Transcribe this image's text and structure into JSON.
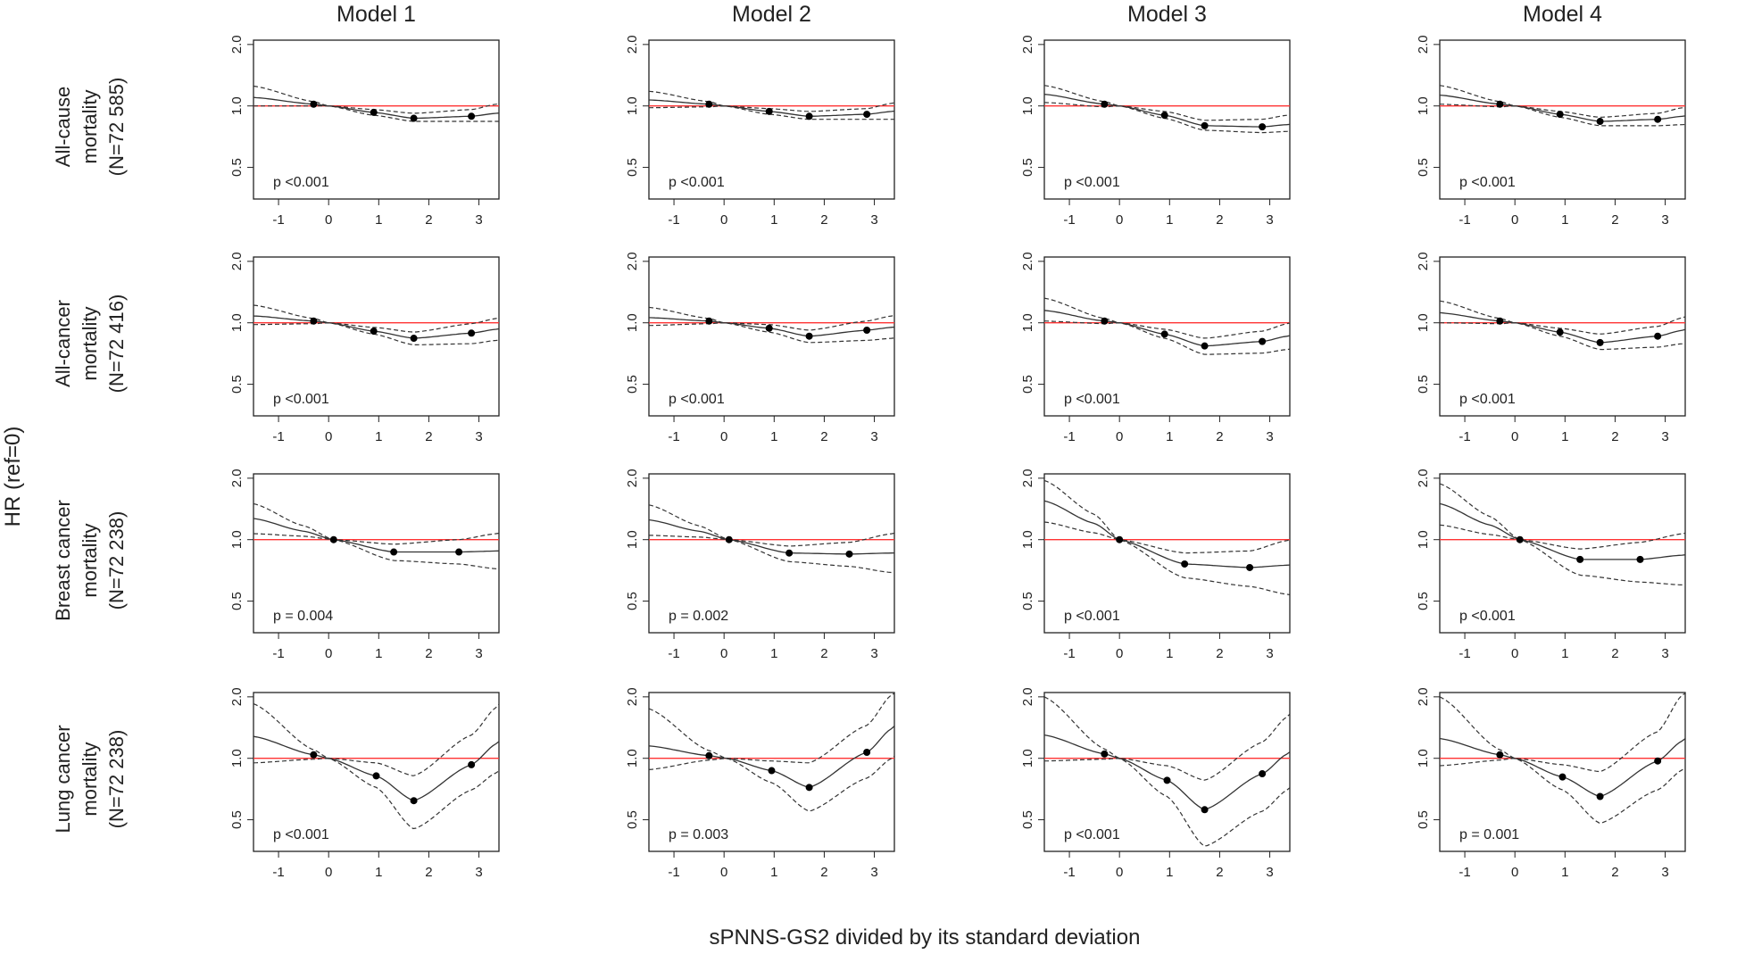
{
  "chart_data": {
    "type": "line",
    "layout": "4x4 grid of restricted cubic spline plots",
    "model_titles": [
      "Model 1",
      "Model 2",
      "Model 3",
      "Model 4"
    ],
    "row_labels": [
      [
        "All-cause",
        "mortality",
        "(N=72 585)"
      ],
      [
        "All-cancer",
        "mortality",
        "(N=72 416)"
      ],
      [
        "Breast cancer",
        "mortality",
        "(N=72 238)"
      ],
      [
        "Lung cancer",
        "mortality",
        "(N=72 238)"
      ]
    ],
    "ylabel": "HR (ref=0)",
    "xlabel": "sPNNS-GS2 divided by its standard deviation",
    "x_ticks": [
      "-1",
      "0",
      "1",
      "2",
      "3"
    ],
    "y_ticks": [
      "0.5",
      "1.0",
      "2.0"
    ],
    "xlim": [
      -1.5,
      3.4
    ],
    "ylim_log": [
      0.35,
      2.1
    ],
    "reference_line": {
      "y": 1.0,
      "color": "#ff0000"
    },
    "colors": {
      "estimate": "#333333",
      "ci": "#333333",
      "reference": "#ff3333",
      "frame": "#222222"
    },
    "panels": [
      [
        {
          "p": "p <0.001",
          "x": [
            -1.5,
            -0.3,
            0,
            0.9,
            1.7,
            2.85,
            3.35
          ],
          "hr": [
            1.1,
            1.02,
            1.0,
            0.93,
            0.87,
            0.89,
            0.92
          ],
          "lo": [
            1.0,
            1.0,
            1.0,
            0.9,
            0.84,
            0.84,
            0.84
          ],
          "hi": [
            1.25,
            1.05,
            1.0,
            0.96,
            0.92,
            0.96,
            1.02
          ],
          "pts_x": [
            -0.3,
            0.9,
            1.7,
            2.85
          ],
          "pts_y": [
            1.02,
            0.93,
            0.87,
            0.89
          ]
        },
        {
          "p": "p <0.001",
          "x": [
            -1.5,
            -0.3,
            0,
            0.9,
            1.7,
            2.85,
            3.35
          ],
          "hr": [
            1.07,
            1.02,
            1.0,
            0.94,
            0.89,
            0.91,
            0.94
          ],
          "lo": [
            0.98,
            0.99,
            1.0,
            0.91,
            0.86,
            0.86,
            0.86
          ],
          "hi": [
            1.18,
            1.05,
            1.0,
            0.97,
            0.94,
            0.97,
            1.03
          ],
          "pts_x": [
            -0.3,
            0.9,
            1.7,
            2.85
          ],
          "pts_y": [
            1.02,
            0.94,
            0.89,
            0.91
          ]
        },
        {
          "p": "p <0.001",
          "x": [
            -1.5,
            -0.3,
            0,
            0.9,
            1.7,
            2.85,
            3.35
          ],
          "hr": [
            1.14,
            1.02,
            1.0,
            0.9,
            0.8,
            0.79,
            0.81
          ],
          "lo": [
            1.04,
            0.99,
            1.0,
            0.87,
            0.76,
            0.74,
            0.75
          ],
          "hi": [
            1.26,
            1.05,
            1.0,
            0.94,
            0.85,
            0.86,
            0.9
          ],
          "pts_x": [
            -0.3,
            0.9,
            1.7,
            2.85
          ],
          "pts_y": [
            1.02,
            0.9,
            0.8,
            0.79
          ]
        },
        {
          "p": "p <0.001",
          "x": [
            -1.5,
            -0.3,
            0,
            0.9,
            1.7,
            2.85,
            3.35
          ],
          "hr": [
            1.13,
            1.02,
            1.0,
            0.91,
            0.84,
            0.86,
            0.89
          ],
          "lo": [
            1.02,
            0.99,
            1.0,
            0.88,
            0.8,
            0.8,
            0.81
          ],
          "hi": [
            1.26,
            1.05,
            1.0,
            0.94,
            0.88,
            0.92,
            0.98
          ],
          "pts_x": [
            -0.3,
            0.9,
            1.7,
            2.85
          ],
          "pts_y": [
            1.02,
            0.91,
            0.84,
            0.86
          ]
        }
      ],
      [
        {
          "p": "p <0.001",
          "x": [
            -1.5,
            -0.3,
            0,
            0.9,
            1.7,
            2.85,
            3.35
          ],
          "hr": [
            1.08,
            1.02,
            1.0,
            0.91,
            0.84,
            0.89,
            0.93
          ],
          "lo": [
            0.98,
            0.99,
            1.0,
            0.88,
            0.78,
            0.79,
            0.82
          ],
          "hi": [
            1.22,
            1.05,
            1.0,
            0.95,
            0.9,
            0.99,
            1.05
          ],
          "pts_x": [
            -0.3,
            0.9,
            1.7,
            2.85
          ],
          "pts_y": [
            1.02,
            0.91,
            0.84,
            0.89
          ]
        },
        {
          "p": "p <0.001",
          "x": [
            -1.5,
            -0.3,
            0,
            0.9,
            1.7,
            2.85,
            3.35
          ],
          "hr": [
            1.06,
            1.02,
            1.0,
            0.94,
            0.86,
            0.92,
            0.95
          ],
          "lo": [
            0.97,
            0.99,
            1.0,
            0.9,
            0.8,
            0.82,
            0.84
          ],
          "hi": [
            1.19,
            1.05,
            1.0,
            0.98,
            0.92,
            1.02,
            1.08
          ],
          "pts_x": [
            -0.3,
            0.9,
            1.7,
            2.85
          ],
          "pts_y": [
            1.02,
            0.94,
            0.86,
            0.92
          ]
        },
        {
          "p": "p <0.001",
          "x": [
            -1.5,
            -0.3,
            0,
            0.9,
            1.7,
            2.85,
            3.35
          ],
          "hr": [
            1.15,
            1.02,
            1.0,
            0.88,
            0.77,
            0.81,
            0.86
          ],
          "lo": [
            1.02,
            0.99,
            1.0,
            0.84,
            0.7,
            0.71,
            0.74
          ],
          "hi": [
            1.32,
            1.05,
            1.0,
            0.93,
            0.84,
            0.91,
            0.99
          ],
          "pts_x": [
            -0.3,
            0.9,
            1.7,
            2.85
          ],
          "pts_y": [
            1.02,
            0.88,
            0.77,
            0.81
          ]
        },
        {
          "p": "p <0.001",
          "x": [
            -1.5,
            -0.3,
            0,
            0.9,
            1.7,
            2.85,
            3.35
          ],
          "hr": [
            1.12,
            1.02,
            1.0,
            0.9,
            0.8,
            0.86,
            0.92
          ],
          "lo": [
            1.0,
            0.99,
            1.0,
            0.86,
            0.74,
            0.76,
            0.79
          ],
          "hi": [
            1.28,
            1.05,
            1.0,
            0.94,
            0.88,
            0.96,
            1.06
          ],
          "pts_x": [
            -0.3,
            0.9,
            1.7,
            2.85
          ],
          "pts_y": [
            1.02,
            0.9,
            0.8,
            0.86
          ]
        }
      ],
      [
        {
          "p": "p = 0.004",
          "x": [
            -1.5,
            -0.5,
            0.1,
            1.3,
            2.6,
            3.35
          ],
          "hr": [
            1.27,
            1.1,
            1.0,
            0.87,
            0.87,
            0.88
          ],
          "lo": [
            1.07,
            1.04,
            1.0,
            0.79,
            0.76,
            0.72
          ],
          "hi": [
            1.5,
            1.17,
            1.0,
            0.95,
            1.0,
            1.07
          ],
          "pts_x": [
            0.1,
            1.3,
            2.6
          ],
          "pts_y": [
            1.0,
            0.87,
            0.87
          ]
        },
        {
          "p": "p = 0.002",
          "x": [
            -1.5,
            -0.5,
            0.1,
            1.3,
            2.5,
            3.35
          ],
          "hr": [
            1.25,
            1.1,
            1.0,
            0.86,
            0.85,
            0.86
          ],
          "lo": [
            1.05,
            1.03,
            1.0,
            0.78,
            0.74,
            0.69
          ],
          "hi": [
            1.48,
            1.17,
            1.0,
            0.93,
            0.97,
            1.07
          ],
          "pts_x": [
            0.1,
            1.3,
            2.5
          ],
          "pts_y": [
            1.0,
            0.86,
            0.85
          ]
        },
        {
          "p": "p <0.001",
          "x": [
            -1.5,
            -0.5,
            0,
            1.3,
            2.6,
            3.35
          ],
          "hr": [
            1.55,
            1.2,
            1.0,
            0.76,
            0.73,
            0.75
          ],
          "lo": [
            1.22,
            1.08,
            1.0,
            0.65,
            0.59,
            0.54
          ],
          "hi": [
            1.95,
            1.33,
            1.0,
            0.86,
            0.88,
            0.99
          ],
          "pts_x": [
            0,
            1.3,
            2.6
          ],
          "pts_y": [
            1.0,
            0.76,
            0.73
          ]
        },
        {
          "p": "p <0.001",
          "x": [
            -1.5,
            -0.5,
            0.1,
            1.3,
            2.5,
            3.35
          ],
          "hr": [
            1.5,
            1.18,
            1.0,
            0.8,
            0.8,
            0.84
          ],
          "lo": [
            1.18,
            1.06,
            1.0,
            0.67,
            0.62,
            0.6
          ],
          "hi": [
            1.88,
            1.3,
            1.0,
            0.9,
            0.97,
            1.07
          ],
          "pts_x": [
            0.1,
            1.3,
            2.5
          ],
          "pts_y": [
            1.0,
            0.8,
            0.8
          ]
        }
      ],
      [
        {
          "p": "p <0.001",
          "x": [
            -1.5,
            -0.3,
            0,
            0.95,
            1.7,
            2.85,
            3.35
          ],
          "hr": [
            1.28,
            1.04,
            1.0,
            0.82,
            0.62,
            0.93,
            1.18
          ],
          "lo": [
            0.95,
            0.99,
            1.0,
            0.72,
            0.45,
            0.7,
            0.85
          ],
          "hi": [
            1.85,
            1.1,
            1.0,
            0.95,
            0.82,
            1.3,
            1.78
          ],
          "pts_x": [
            -0.3,
            0.95,
            1.7,
            2.85
          ],
          "pts_y": [
            1.04,
            0.82,
            0.62,
            0.93
          ]
        },
        {
          "p": "p = 0.003",
          "x": [
            -1.5,
            -0.3,
            0.05,
            0.95,
            1.7,
            2.85,
            3.35
          ],
          "hr": [
            1.15,
            1.03,
            1.0,
            0.87,
            0.72,
            1.07,
            1.4
          ],
          "lo": [
            0.88,
            0.98,
            1.0,
            0.76,
            0.55,
            0.8,
            1.0
          ],
          "hi": [
            1.75,
            1.09,
            1.0,
            0.97,
            0.95,
            1.45,
            2.05
          ],
          "pts_x": [
            -0.3,
            0.95,
            1.7,
            2.85
          ],
          "pts_y": [
            1.03,
            0.87,
            0.72,
            1.07
          ]
        },
        {
          "p": "p <0.001",
          "x": [
            -1.5,
            -0.3,
            0,
            0.95,
            1.7,
            2.85,
            3.35
          ],
          "hr": [
            1.3,
            1.05,
            1.0,
            0.78,
            0.56,
            0.84,
            1.05
          ],
          "lo": [
            0.97,
            0.99,
            1.0,
            0.65,
            0.37,
            0.55,
            0.7
          ],
          "hi": [
            2.0,
            1.11,
            1.0,
            0.92,
            0.78,
            1.2,
            1.6
          ],
          "pts_x": [
            -0.3,
            0.95,
            1.7,
            2.85
          ],
          "pts_y": [
            1.05,
            0.78,
            0.56,
            0.84
          ]
        },
        {
          "p": "p = 0.001",
          "x": [
            -1.5,
            -0.3,
            0,
            0.95,
            1.7,
            2.85,
            3.35
          ],
          "hr": [
            1.25,
            1.04,
            1.0,
            0.81,
            0.65,
            0.97,
            1.22
          ],
          "lo": [
            0.92,
            0.98,
            1.0,
            0.7,
            0.48,
            0.7,
            0.88
          ],
          "hi": [
            2.0,
            1.1,
            1.0,
            0.93,
            0.86,
            1.35,
            2.05
          ],
          "pts_x": [
            -0.3,
            0.95,
            1.7,
            2.85
          ],
          "pts_y": [
            1.04,
            0.81,
            0.65,
            0.97
          ]
        }
      ]
    ]
  }
}
